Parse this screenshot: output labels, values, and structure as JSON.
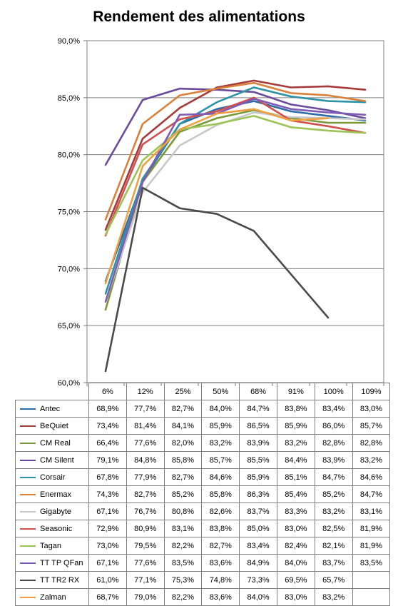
{
  "chart_data": {
    "type": "line",
    "title": "Rendement des alimentations",
    "categories": [
      "6%",
      "12%",
      "25%",
      "50%",
      "68%",
      "91%",
      "100%",
      "109%"
    ],
    "y_ticks": [
      "90,0%",
      "85,0%",
      "80,0%",
      "75,0%",
      "70,0%",
      "65,0%",
      "60,0%"
    ],
    "ylim": [
      60,
      90
    ],
    "grid": true,
    "legend": "data-table",
    "series": [
      {
        "name": "Antec",
        "color": "#2d6ca5",
        "labels": [
          "68,9%",
          "77,7%",
          "82,7%",
          "84,0%",
          "84,7%",
          "83,8%",
          "83,4%",
          "83,0%"
        ],
        "values": [
          68.9,
          77.7,
          82.7,
          84.0,
          84.7,
          83.8,
          83.4,
          83.0
        ]
      },
      {
        "name": "BeQuiet",
        "color": "#a53a3a",
        "labels": [
          "73,4%",
          "81,4%",
          "84,1%",
          "85,9%",
          "86,5%",
          "85,9%",
          "86,0%",
          "85,7%"
        ],
        "values": [
          73.4,
          81.4,
          84.1,
          85.9,
          86.5,
          85.9,
          86.0,
          85.7
        ]
      },
      {
        "name": "CM Real",
        "color": "#7a9a3a",
        "labels": [
          "66,4%",
          "77,6%",
          "82,0%",
          "83,2%",
          "83,9%",
          "83,2%",
          "82,8%",
          "82,8%"
        ],
        "values": [
          66.4,
          77.6,
          82.0,
          83.2,
          83.9,
          83.2,
          82.8,
          82.8
        ]
      },
      {
        "name": "CM Silent",
        "color": "#6a4a9a",
        "labels": [
          "79,1%",
          "84,8%",
          "85,8%",
          "85,7%",
          "85,5%",
          "84,4%",
          "83,9%",
          "83,2%"
        ],
        "values": [
          79.1,
          84.8,
          85.8,
          85.7,
          85.5,
          84.4,
          83.9,
          83.2
        ]
      },
      {
        "name": "Corsair",
        "color": "#2f93a8",
        "labels": [
          "67,8%",
          "77,9%",
          "82,7%",
          "84,6%",
          "85,9%",
          "85,1%",
          "84,7%",
          "84,6%"
        ],
        "values": [
          67.8,
          77.9,
          82.7,
          84.6,
          85.9,
          85.1,
          84.7,
          84.6
        ]
      },
      {
        "name": "Enermax",
        "color": "#d9803a",
        "labels": [
          "74,3%",
          "82,7%",
          "85,2%",
          "85,8%",
          "86,3%",
          "85,4%",
          "85,2%",
          "84,7%"
        ],
        "values": [
          74.3,
          82.7,
          85.2,
          85.8,
          86.3,
          85.4,
          85.2,
          84.7
        ]
      },
      {
        "name": "Gigabyte",
        "color": "#c8c8c8",
        "labels": [
          "67,1%",
          "76,7%",
          "80,8%",
          "82,6%",
          "83,7%",
          "83,3%",
          "83,2%",
          "83,1%"
        ],
        "values": [
          67.1,
          76.7,
          80.8,
          82.6,
          83.7,
          83.3,
          83.2,
          83.1
        ]
      },
      {
        "name": "Seasonic",
        "color": "#d0504e",
        "labels": [
          "72,9%",
          "80,9%",
          "83,1%",
          "83,8%",
          "85,0%",
          "83,0%",
          "82,5%",
          "81,9%"
        ],
        "values": [
          72.9,
          80.9,
          83.1,
          83.8,
          85.0,
          83.0,
          82.5,
          81.9
        ]
      },
      {
        "name": "Tagan",
        "color": "#9bc454",
        "labels": [
          "73,0%",
          "79,5%",
          "82,2%",
          "82,7%",
          "83,4%",
          "82,4%",
          "82,1%",
          "81,9%"
        ],
        "values": [
          73.0,
          79.5,
          82.2,
          82.7,
          83.4,
          82.4,
          82.1,
          81.9
        ]
      },
      {
        "name": "TT TP QFan",
        "color": "#7e5bb5",
        "labels": [
          "67,1%",
          "77,6%",
          "83,5%",
          "83,6%",
          "84,9%",
          "84,0%",
          "83,7%",
          "83,5%"
        ],
        "values": [
          67.1,
          77.6,
          83.5,
          83.6,
          84.9,
          84.0,
          83.7,
          83.5
        ]
      },
      {
        "name": "TT TR2 RX",
        "color": "#4a4a4a",
        "labels": [
          "61,0%",
          "77,1%",
          "75,3%",
          "74,8%",
          "73,3%",
          "69,5%",
          "65,7%",
          ""
        ],
        "values": [
          61.0,
          77.1,
          75.3,
          74.8,
          73.3,
          69.5,
          65.7,
          null
        ]
      },
      {
        "name": "Zalman",
        "color": "#f0a040",
        "labels": [
          "68,7%",
          "79,0%",
          "82,2%",
          "83,6%",
          "84,0%",
          "83,0%",
          "83,2%",
          ""
        ],
        "values": [
          68.7,
          79.0,
          82.2,
          83.6,
          84.0,
          83.0,
          83.2,
          null
        ]
      }
    ]
  }
}
